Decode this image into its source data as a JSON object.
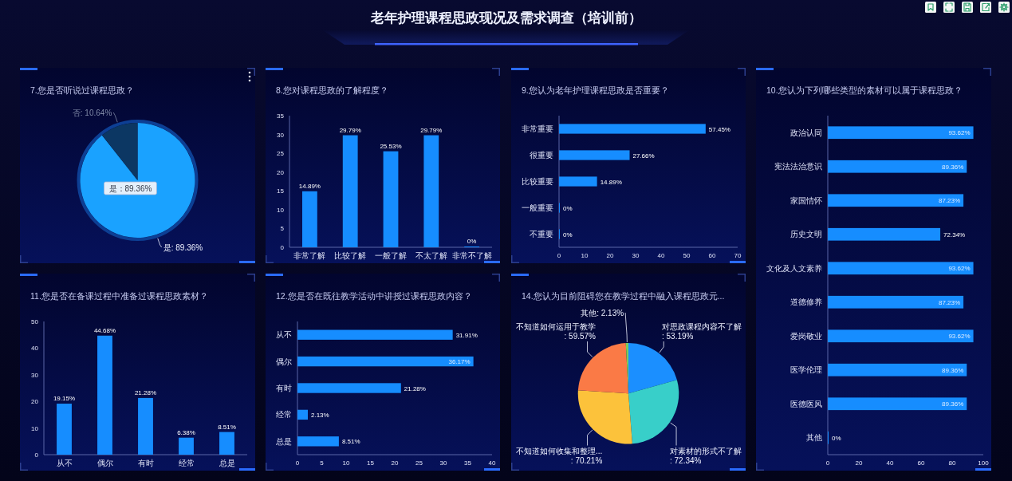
{
  "chart_data": [
    {
      "type": "other",
      "title": "老年护理课程思政现况及需求调查（培训前）"
    },
    {
      "type": "pie",
      "title": "7.您是否听说过课程思政？",
      "categories": [
        "是",
        "否"
      ],
      "values": [
        89.36,
        10.64
      ],
      "colors": [
        "#1aa2ff",
        "#0c3763"
      ],
      "value_labels": [
        ": 89.36%",
        ": 10.64%"
      ],
      "annotations": [
        "是：89.36%"
      ]
    },
    {
      "type": "bar",
      "title": "8.您对课程思政的了解程度？",
      "categories": [
        "非常了解",
        "比较了解",
        "一般了解",
        "不太了解",
        "非常不了解"
      ],
      "values": [
        14.89,
        29.79,
        25.53,
        29.79,
        0
      ],
      "color": "#168dff",
      "value_labels": [
        "14.89%",
        "29.79%",
        "25.53%",
        "29.79%",
        "0%"
      ],
      "ylim": [
        0,
        35
      ],
      "yticks": [
        0,
        5,
        10,
        15,
        20,
        25,
        30,
        35
      ]
    },
    {
      "type": "bar",
      "orientation": "horizontal",
      "title": "9.您认为老年护理课程思政是否重要？",
      "categories": [
        "非常重要",
        "很重要",
        "比较重要",
        "一般重要",
        "不重要"
      ],
      "values": [
        57.45,
        27.66,
        14.89,
        0,
        0
      ],
      "color": "#168dff",
      "value_labels": [
        "57.45%",
        "27.66%",
        "14.89%",
        "0%",
        "0%"
      ],
      "xlim": [
        0,
        70
      ],
      "xticks": [
        0,
        10,
        20,
        30,
        40,
        50,
        60,
        70
      ]
    },
    {
      "type": "bar",
      "orientation": "horizontal",
      "title": "10.您认为下列哪些类型的素材可以属于课程思政？",
      "categories": [
        "政治认同",
        "宪法法治意识",
        "家国情怀",
        "历史文明",
        "文化及人文素养",
        "道德修养",
        "爱岗敬业",
        "医学伦理",
        "医德医风",
        "其他"
      ],
      "values": [
        93.62,
        89.36,
        87.23,
        72.34,
        93.62,
        87.23,
        93.62,
        89.36,
        89.36,
        0
      ],
      "color": "#168dff",
      "value_labels": [
        "93.62%",
        "89.36%",
        "87.23%",
        "72.34%",
        "93.62%",
        "87.23%",
        "93.62%",
        "89.36%",
        "89.36%",
        "0%"
      ],
      "xlim": [
        0,
        100
      ],
      "xticks": [
        0,
        20,
        40,
        60,
        80,
        100
      ]
    },
    {
      "type": "bar",
      "title": "11.您是否在备课过程中准备过课程思政素材？",
      "categories": [
        "从不",
        "偶尔",
        "有时",
        "经常",
        "总是"
      ],
      "values": [
        19.15,
        44.68,
        21.28,
        6.38,
        8.51
      ],
      "color": "#168dff",
      "value_labels": [
        "19.15%",
        "44.68%",
        "21.28%",
        "6.38%",
        "8.51%"
      ],
      "ylim": [
        0,
        50
      ],
      "yticks": [
        0,
        10,
        20,
        30,
        40,
        50
      ]
    },
    {
      "type": "bar",
      "orientation": "horizontal",
      "title": "12.您是否在既往教学活动中讲授过课程思政内容？",
      "categories": [
        "从不",
        "偶尔",
        "有时",
        "经常",
        "总是"
      ],
      "values": [
        31.91,
        36.17,
        21.28,
        2.13,
        8.51
      ],
      "color": "#168dff",
      "value_labels": [
        "31.91%",
        "36.17%",
        "21.28%",
        "2.13%",
        "8.51%"
      ],
      "xlim": [
        0,
        40
      ],
      "xticks": [
        0,
        5,
        10,
        15,
        20,
        25,
        30,
        35,
        40
      ]
    },
    {
      "type": "pie",
      "title": "14.您认为目前阻碍您在教学过程中融入课程思政元...",
      "categories": [
        "对思政课程内容不了解",
        "对素材的形式不了解",
        "不知道如何收集和整理...",
        "不知道如何运用于教学",
        "其他"
      ],
      "values": [
        53.19,
        72.34,
        70.21,
        59.57,
        2.13
      ],
      "colors": [
        "#1b8fff",
        "#38cfc9",
        "#fcc23b",
        "#fa7a46",
        "#7ccc5a"
      ],
      "value_labels": [
        ": 53.19%",
        ": 72.34%",
        ": 70.21%",
        ": 59.57%",
        ": 2.13%"
      ]
    }
  ]
}
